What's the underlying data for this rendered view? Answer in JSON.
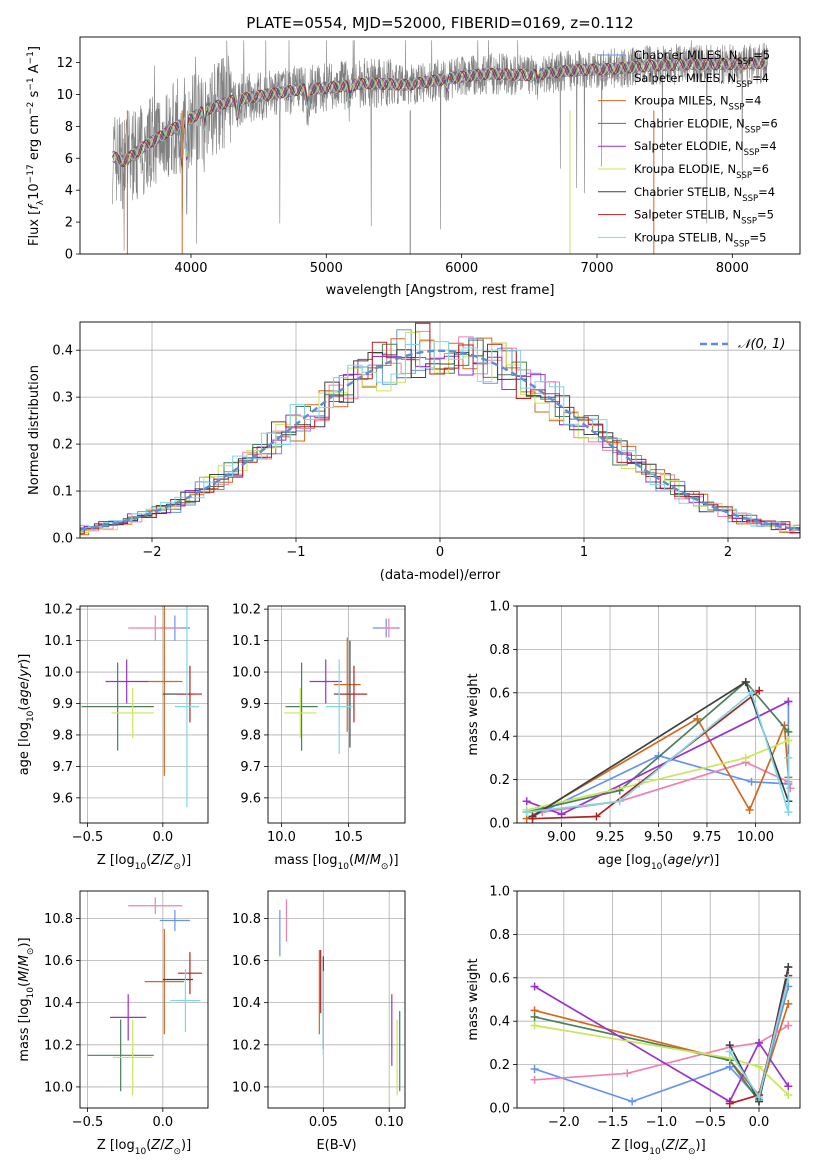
{
  "chart_data": [
    {
      "id": "spectrum",
      "type": "line",
      "title": "PLATE=0554, MJD=52000, FIBERID=0169, z=0.112",
      "xlabel": "wavelength [Angstrom, rest frame]",
      "ylabel": "Flux [f_λ 10^-17 erg cm^-2 s^-1 A^-1]",
      "xlim": [
        3180,
        8500
      ],
      "ylim": [
        0,
        13.6
      ],
      "xticks": [
        4000,
        5000,
        6000,
        7000,
        8000
      ],
      "yticks": [
        0,
        2,
        4,
        6,
        8,
        10,
        12
      ],
      "legend_position": "top-right",
      "data_series": {
        "name": "",
        "color": "#808080"
      },
      "series": [
        {
          "name": "Chabrier MILES, N_SSP=5",
          "label_main": "Chabrier MILES, N",
          "label_sub": "SSP",
          "label_tail": "=5",
          "color": "#6495ED"
        },
        {
          "name": "Salpeter MILES, N_SSP=4",
          "label_main": "Salpeter MILES, N",
          "label_sub": "SSP",
          "label_tail": "=4",
          "color": "#F080B0"
        },
        {
          "name": "Kroupa MILES, N_SSP=4",
          "label_main": "Kroupa MILES, N",
          "label_sub": "SSP",
          "label_tail": "=4",
          "color": "#D2691E"
        },
        {
          "name": "Chabrier ELODIE, N_SSP=6",
          "label_main": "Chabrier ELODIE, N",
          "label_sub": "SSP",
          "label_tail": "=6",
          "color": "#4E7F5A"
        },
        {
          "name": "Salpeter ELODIE, N_SSP=4",
          "label_main": "Salpeter ELODIE, N",
          "label_sub": "SSP",
          "label_tail": "=4",
          "color": "#9932CC"
        },
        {
          "name": "Kroupa ELODIE, N_SSP=6",
          "label_main": "Kroupa ELODIE, N",
          "label_sub": "SSP",
          "label_tail": "=6",
          "color": "#C8E65A"
        },
        {
          "name": "Chabrier STELIB, N_SSP=4",
          "label_main": "Chabrier STELIB, N",
          "label_sub": "SSP",
          "label_tail": "=4",
          "color": "#404040"
        },
        {
          "name": "Salpeter STELIB, N_SSP=5",
          "label_main": "Salpeter STELIB, N",
          "label_sub": "SSP",
          "label_tail": "=5",
          "color": "#B22222"
        },
        {
          "name": "Kroupa STELIB, N_SSP=5",
          "label_main": "Kroupa STELIB, N",
          "label_sub": "SSP",
          "label_tail": "=5",
          "color": "#7FD8E6"
        }
      ],
      "model_points": {
        "x": [
          3400,
          3500,
          3700,
          3900,
          4100,
          4300,
          4500,
          4800,
          5000,
          5300,
          5600,
          5900,
          6200,
          6500,
          6800,
          7100,
          7400,
          7700,
          8000,
          8300
        ],
        "y": [
          6.2,
          5.8,
          7.0,
          8.0,
          9.0,
          9.6,
          9.9,
          10.3,
          10.4,
          10.7,
          10.6,
          11.0,
          11.3,
          11.2,
          11.5,
          11.6,
          11.8,
          11.9,
          11.9,
          12.0
        ]
      }
    },
    {
      "id": "residuals",
      "type": "histogram",
      "xlabel": "(data-model)/error",
      "ylabel": "Normed distribution",
      "xlim": [
        -2.5,
        2.5
      ],
      "ylim": [
        0,
        0.46
      ],
      "xticks": [
        -2,
        -1,
        0,
        1,
        2
      ],
      "yticks": [
        0.0,
        0.1,
        0.2,
        0.3,
        0.4
      ],
      "grid": true,
      "legend_position": "top-right",
      "gaussian_label": "𝒩(0, 1)",
      "gaussian_color": "#5B8ED6"
    },
    {
      "id": "age-vs-Z",
      "type": "errorbar",
      "xlabel": "Z [log10(Z/Z⊙)]",
      "ylabel": "age  [log10(age/yr)]",
      "xlim": [
        -0.55,
        0.3
      ],
      "ylim": [
        9.52,
        10.21
      ],
      "xticks": [
        -0.5,
        0.0
      ],
      "yticks": [
        9.6,
        9.7,
        9.8,
        9.9,
        10.0,
        10.1,
        10.2
      ],
      "grid": true,
      "points": [
        {
          "x": 0.08,
          "y": 10.14,
          "xerr": 0.1,
          "yerr": 0.04,
          "color": "#6495ED"
        },
        {
          "x": -0.05,
          "y": 10.14,
          "xerr": 0.18,
          "yerr": 0.04,
          "color": "#F080B0"
        },
        {
          "x": 0.01,
          "y": 9.97,
          "xerr": 0.12,
          "yerr": 0.3,
          "color": "#D2691E"
        },
        {
          "x": -0.3,
          "y": 9.89,
          "xerr": 0.24,
          "yerr": 0.14,
          "color": "#4E7F5A"
        },
        {
          "x": -0.24,
          "y": 9.97,
          "xerr": 0.14,
          "yerr": 0.07,
          "color": "#9932CC"
        },
        {
          "x": -0.2,
          "y": 9.87,
          "xerr": 0.14,
          "yerr": 0.08,
          "color": "#C8E65A"
        },
        {
          "x": 0.1,
          "y": 9.93,
          "xerr": 0.1,
          "yerr": 0.0,
          "color": "#404040"
        },
        {
          "x": 0.18,
          "y": 9.93,
          "xerr": 0.08,
          "yerr": 0.09,
          "color": "#B22222"
        },
        {
          "x": 0.16,
          "y": 9.89,
          "xerr": 0.08,
          "yerr": 0.32,
          "color": "#7FD8E6"
        }
      ]
    },
    {
      "id": "age-vs-mass",
      "type": "errorbar",
      "xlabel": "mass [log10(M/M⊙)]",
      "xlim": [
        9.9,
        10.92
      ],
      "ylim": [
        9.52,
        10.21
      ],
      "xticks": [
        10.0,
        10.5
      ],
      "yticks": [
        9.6,
        9.7,
        9.8,
        9.9,
        10.0,
        10.1,
        10.2
      ],
      "grid": true,
      "points": [
        {
          "x": 10.78,
          "y": 10.14,
          "xerr": 0.1,
          "yerr": 0.03,
          "color": "#6495ED"
        },
        {
          "x": 10.8,
          "y": 10.14,
          "xerr": 0.06,
          "yerr": 0.03,
          "color": "#F080B0"
        },
        {
          "x": 10.49,
          "y": 9.96,
          "xerr": 0.1,
          "yerr": 0.15,
          "color": "#D2691E"
        },
        {
          "x": 10.15,
          "y": 9.89,
          "xerr": 0.12,
          "yerr": 0.14,
          "color": "#4E7F5A"
        },
        {
          "x": 10.33,
          "y": 9.97,
          "xerr": 0.12,
          "yerr": 0.07,
          "color": "#9932CC"
        },
        {
          "x": 10.14,
          "y": 9.87,
          "xerr": 0.12,
          "yerr": 0.08,
          "color": "#C8E65A"
        },
        {
          "x": 10.51,
          "y": 9.93,
          "xerr": 0.12,
          "yerr": 0.17,
          "color": "#404040"
        },
        {
          "x": 10.54,
          "y": 9.93,
          "xerr": 0.1,
          "yerr": 0.09,
          "color": "#B22222"
        },
        {
          "x": 10.43,
          "y": 9.89,
          "xerr": 0.1,
          "yerr": 0.15,
          "color": "#7FD8E6"
        }
      ]
    },
    {
      "id": "massweight-vs-age",
      "type": "line",
      "xlabel": "age  [log10(age/yr)]",
      "ylabel": "mass weight",
      "xlim": [
        8.77,
        10.23
      ],
      "ylim": [
        0,
        1.0
      ],
      "xticks": [
        9.0,
        9.25,
        9.5,
        9.75,
        10.0
      ],
      "yticks": [
        0.0,
        0.2,
        0.4,
        0.6,
        0.8,
        1.0
      ],
      "grid": true,
      "series": [
        {
          "color": "#6495ED",
          "x": [
            8.85,
            9.5,
            9.98,
            10.17,
            10.17
          ],
          "y": [
            0.03,
            0.31,
            0.19,
            0.18,
            0.56
          ]
        },
        {
          "color": "#F080B0",
          "x": [
            8.9,
            9.3,
            9.95,
            10.17,
            10.18
          ],
          "y": [
            0.05,
            0.1,
            0.28,
            0.19,
            0.16
          ]
        },
        {
          "color": "#D2691E",
          "x": [
            8.82,
            9.7,
            9.97,
            10.15,
            10.17
          ],
          "y": [
            0.02,
            0.48,
            0.06,
            0.45,
            0.21
          ]
        },
        {
          "color": "#4E7F5A",
          "x": [
            8.82,
            9.3,
            9.95,
            10.17
          ],
          "y": [
            0.05,
            0.15,
            0.65,
            0.42
          ]
        },
        {
          "color": "#9932CC",
          "x": [
            8.82,
            9.0,
            10.17
          ],
          "y": [
            0.1,
            0.04,
            0.56
          ]
        },
        {
          "color": "#C8E65A",
          "x": [
            8.82,
            9.4,
            9.95,
            10.17
          ],
          "y": [
            0.06,
            0.18,
            0.3,
            0.38
          ]
        },
        {
          "color": "#404040",
          "x": [
            8.85,
            9.95,
            10.17
          ],
          "y": [
            0.03,
            0.65,
            0.1
          ]
        },
        {
          "color": "#B22222",
          "x": [
            8.85,
            9.18,
            10.02
          ],
          "y": [
            0.02,
            0.03,
            0.61
          ]
        },
        {
          "color": "#7FD8E6",
          "x": [
            8.82,
            9.3,
            9.98,
            10.17,
            10.17
          ],
          "y": [
            0.05,
            0.1,
            0.6,
            0.05,
            0.3
          ]
        }
      ]
    },
    {
      "id": "mass-vs-Z",
      "type": "errorbar",
      "xlabel": "Z [log10(Z/Z⊙)]",
      "ylabel": "mass [log10(M/M⊙)]",
      "xlim": [
        -0.55,
        0.3
      ],
      "ylim": [
        9.9,
        10.93
      ],
      "xticks": [
        -0.5,
        0.0
      ],
      "yticks": [
        10.0,
        10.2,
        10.4,
        10.6,
        10.8
      ],
      "grid": true,
      "points": [
        {
          "x": 0.08,
          "y": 10.79,
          "xerr": 0.1,
          "yerr": 0.05,
          "color": "#6495ED"
        },
        {
          "x": -0.05,
          "y": 10.86,
          "xerr": 0.18,
          "yerr": 0.04,
          "color": "#F080B0"
        },
        {
          "x": 0.01,
          "y": 10.5,
          "xerr": 0.13,
          "yerr": 0.25,
          "color": "#D2691E"
        },
        {
          "x": -0.28,
          "y": 10.15,
          "xerr": 0.22,
          "yerr": 0.17,
          "color": "#4E7F5A"
        },
        {
          "x": -0.23,
          "y": 10.33,
          "xerr": 0.12,
          "yerr": 0.11,
          "color": "#9932CC"
        },
        {
          "x": -0.2,
          "y": 10.14,
          "xerr": 0.13,
          "yerr": 0.18,
          "color": "#C8E65A"
        },
        {
          "x": 0.1,
          "y": 10.51,
          "xerr": 0.1,
          "yerr": 0.0,
          "color": "#404040"
        },
        {
          "x": 0.18,
          "y": 10.54,
          "xerr": 0.08,
          "yerr": 0.1,
          "color": "#B22222"
        },
        {
          "x": 0.15,
          "y": 10.41,
          "xerr": 0.1,
          "yerr": 0.15,
          "color": "#7FD8E6"
        }
      ]
    },
    {
      "id": "mass-vs-ebv",
      "type": "errorbar",
      "xlabel": "E(B-V)",
      "xlim": [
        0.008,
        0.112
      ],
      "ylim": [
        9.9,
        10.93
      ],
      "xticks": [
        0.05,
        0.1
      ],
      "yticks": [
        10.0,
        10.2,
        10.4,
        10.6,
        10.8
      ],
      "grid": true,
      "points": [
        {
          "x": 0.017,
          "y": 10.73,
          "xerr": 0.0,
          "yerr": 0.11,
          "color": "#6495ED"
        },
        {
          "x": 0.022,
          "y": 10.79,
          "xerr": 0.0,
          "yerr": 0.1,
          "color": "#F080B0"
        },
        {
          "x": 0.047,
          "y": 10.45,
          "xerr": 0.0,
          "yerr": 0.2,
          "color": "#D2691E"
        },
        {
          "x": 0.108,
          "y": 10.17,
          "xerr": 0.0,
          "yerr": 0.19,
          "color": "#4E7F5A"
        },
        {
          "x": 0.102,
          "y": 10.27,
          "xerr": 0.0,
          "yerr": 0.17,
          "color": "#9932CC"
        },
        {
          "x": 0.106,
          "y": 10.14,
          "xerr": 0.0,
          "yerr": 0.18,
          "color": "#C8E65A"
        },
        {
          "x": 0.05,
          "y": 10.4,
          "xerr": 0.0,
          "yerr": 0.22,
          "color": "#404040"
        },
        {
          "x": 0.048,
          "y": 10.5,
          "xerr": 0.0,
          "yerr": 0.15,
          "color": "#B22222"
        },
        {
          "x": 0.05,
          "y": 10.35,
          "xerr": 0.0,
          "yerr": 0.2,
          "color": "#7FD8E6"
        }
      ]
    },
    {
      "id": "massweight-vs-Z",
      "type": "line",
      "xlabel": "Z [log10(Z/Z⊙)]",
      "ylabel": "mass weight",
      "xlim": [
        -2.48,
        0.42
      ],
      "ylim": [
        0,
        1.0
      ],
      "xticks": [
        -2.0,
        -1.5,
        -1.0,
        -0.5,
        0.0
      ],
      "yticks": [
        0.0,
        0.2,
        0.4,
        0.6,
        0.8,
        1.0
      ],
      "grid": true,
      "series": [
        {
          "color": "#6495ED",
          "x": [
            -2.3,
            -1.3,
            -0.3,
            0.0,
            0.3
          ],
          "y": [
            0.18,
            0.03,
            0.19,
            0.04,
            0.56
          ]
        },
        {
          "color": "#F080B0",
          "x": [
            -2.3,
            -1.35,
            -0.3,
            0.0,
            0.3
          ],
          "y": [
            0.13,
            0.16,
            0.28,
            0.3,
            0.38
          ]
        },
        {
          "color": "#D2691E",
          "x": [
            -2.3,
            -0.3,
            0.0,
            0.3
          ],
          "y": [
            0.45,
            0.22,
            0.06,
            0.48
          ]
        },
        {
          "color": "#4E7F5A",
          "x": [
            -2.3,
            -0.3,
            0.0,
            0.3
          ],
          "y": [
            0.42,
            0.22,
            0.03,
            0.65
          ]
        },
        {
          "color": "#9932CC",
          "x": [
            -2.3,
            -0.3,
            0.0,
            0.3
          ],
          "y": [
            0.56,
            0.03,
            0.3,
            0.1
          ]
        },
        {
          "color": "#C8E65A",
          "x": [
            -2.3,
            -0.3,
            0.0,
            0.3
          ],
          "y": [
            0.38,
            0.23,
            0.19,
            0.06
          ]
        },
        {
          "color": "#404040",
          "x": [
            -0.3,
            0.0,
            0.3
          ],
          "y": [
            0.29,
            0.03,
            0.65
          ]
        },
        {
          "color": "#B22222",
          "x": [
            -0.3,
            0.0,
            0.3
          ],
          "y": [
            0.02,
            0.06,
            0.61
          ]
        },
        {
          "color": "#7FD8E6",
          "x": [
            -0.3,
            0.0,
            0.3
          ],
          "y": [
            0.26,
            0.05,
            0.6
          ]
        }
      ]
    }
  ]
}
